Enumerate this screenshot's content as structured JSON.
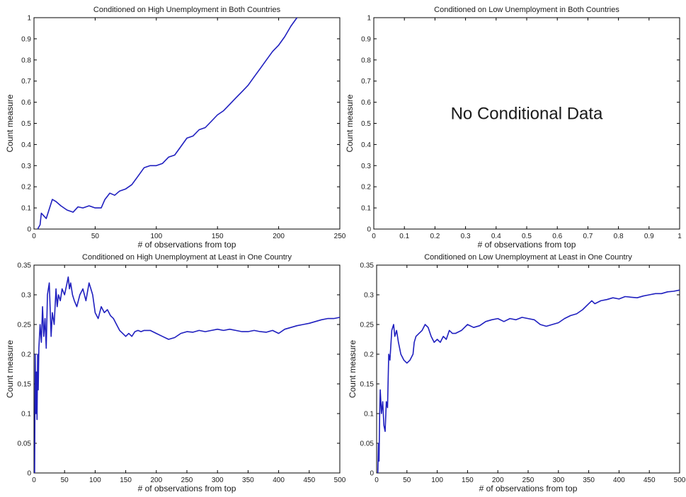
{
  "colors": {
    "line": "#1f1fbf",
    "axis": "#000000",
    "background": "#ffffff"
  },
  "chart_data": [
    {
      "type": "line",
      "title": "Conditioned on High Unemployment in Both Countries",
      "xlabel": "# of observations from top",
      "ylabel": "Count measure",
      "xlim": [
        0,
        250
      ],
      "ylim": [
        0,
        1
      ],
      "xticks": [
        "0",
        "50",
        "100",
        "150",
        "200",
        "250"
      ],
      "yticks": [
        "0",
        "0.1",
        "0.2",
        "0.3",
        "0.4",
        "0.5",
        "0.6",
        "0.7",
        "0.8",
        "0.9",
        "1"
      ],
      "grid": false,
      "note": "",
      "series": [
        {
          "x": [
            3,
            5,
            6,
            10,
            15,
            18,
            22,
            27,
            32,
            36,
            40,
            45,
            50,
            55,
            58,
            62,
            66,
            70,
            75,
            80,
            85,
            90,
            95,
            100,
            105,
            110,
            115,
            120,
            125,
            130,
            135,
            140,
            145,
            150,
            155,
            160,
            165,
            170,
            175,
            180,
            185,
            190,
            195,
            200,
            205,
            210,
            215
          ],
          "y": [
            0,
            0.02,
            0.075,
            0.05,
            0.14,
            0.13,
            0.11,
            0.09,
            0.08,
            0.105,
            0.1,
            0.11,
            0.1,
            0.1,
            0.14,
            0.17,
            0.16,
            0.18,
            0.19,
            0.21,
            0.25,
            0.29,
            0.3,
            0.3,
            0.31,
            0.34,
            0.35,
            0.39,
            0.43,
            0.44,
            0.47,
            0.48,
            0.51,
            0.54,
            0.56,
            0.59,
            0.62,
            0.65,
            0.68,
            0.72,
            0.76,
            0.8,
            0.84,
            0.87,
            0.91,
            0.96,
            1.0
          ]
        }
      ]
    },
    {
      "type": "line",
      "title": "Conditioned on Low Unemployment in Both Countries",
      "xlabel": "# of observations from top",
      "ylabel": "Count measure",
      "xlim": [
        0,
        1
      ],
      "ylim": [
        0,
        1
      ],
      "xticks": [
        "0",
        "0.1",
        "0.2",
        "0.3",
        "0.4",
        "0.5",
        "0.6",
        "0.7",
        "0.8",
        "0.9",
        "1"
      ],
      "yticks": [
        "0",
        "0.1",
        "0.2",
        "0.3",
        "0.4",
        "0.5",
        "0.6",
        "0.7",
        "0.8",
        "0.9",
        "1"
      ],
      "grid": false,
      "note": "No Conditional Data",
      "series": []
    },
    {
      "type": "line",
      "title": "Conditioned on High Unemployment at Least in One Country",
      "xlabel": "# of observations from top",
      "ylabel": "Count measure",
      "xlim": [
        0,
        500
      ],
      "ylim": [
        0,
        0.35
      ],
      "xticks": [
        "0",
        "50",
        "100",
        "150",
        "200",
        "250",
        "300",
        "350",
        "400",
        "450",
        "500"
      ],
      "yticks": [
        "0",
        "0.05",
        "0.1",
        "0.15",
        "0.2",
        "0.25",
        "0.3",
        "0.35"
      ],
      "grid": false,
      "note": "",
      "series": [
        {
          "x": [
            1,
            2,
            3,
            4,
            5,
            6,
            7,
            8,
            10,
            12,
            14,
            16,
            18,
            20,
            22,
            25,
            28,
            30,
            33,
            36,
            38,
            40,
            43,
            46,
            50,
            54,
            56,
            58,
            60,
            63,
            66,
            70,
            75,
            80,
            85,
            90,
            93,
            96,
            100,
            105,
            110,
            115,
            120,
            125,
            130,
            135,
            140,
            145,
            150,
            155,
            160,
            165,
            170,
            175,
            180,
            190,
            200,
            210,
            220,
            230,
            240,
            250,
            260,
            270,
            280,
            290,
            300,
            310,
            320,
            330,
            340,
            350,
            360,
            370,
            380,
            390,
            400,
            410,
            420,
            430,
            440,
            450,
            460,
            470,
            480,
            490,
            500
          ],
          "y": [
            0,
            0.2,
            0.1,
            0.17,
            0.09,
            0.2,
            0.14,
            0.21,
            0.25,
            0.22,
            0.28,
            0.23,
            0.26,
            0.21,
            0.3,
            0.32,
            0.23,
            0.27,
            0.25,
            0.31,
            0.28,
            0.3,
            0.29,
            0.31,
            0.3,
            0.32,
            0.33,
            0.31,
            0.32,
            0.3,
            0.29,
            0.28,
            0.3,
            0.31,
            0.29,
            0.32,
            0.31,
            0.3,
            0.27,
            0.26,
            0.28,
            0.27,
            0.275,
            0.265,
            0.26,
            0.25,
            0.24,
            0.235,
            0.23,
            0.235,
            0.23,
            0.238,
            0.24,
            0.238,
            0.24,
            0.24,
            0.235,
            0.23,
            0.225,
            0.228,
            0.235,
            0.238,
            0.237,
            0.24,
            0.238,
            0.24,
            0.242,
            0.24,
            0.242,
            0.24,
            0.238,
            0.238,
            0.24,
            0.238,
            0.237,
            0.24,
            0.235,
            0.242,
            0.245,
            0.248,
            0.25,
            0.252,
            0.255,
            0.258,
            0.26,
            0.26,
            0.262
          ]
        }
      ]
    },
    {
      "type": "line",
      "title": "Conditioned on Low Unemployment at Least in One Country",
      "xlabel": "# of observations from top",
      "ylabel": "Count measure",
      "xlim": [
        0,
        500
      ],
      "ylim": [
        0,
        0.35
      ],
      "xticks": [
        "0",
        "50",
        "100",
        "150",
        "200",
        "250",
        "300",
        "350",
        "400",
        "450",
        "500"
      ],
      "yticks": [
        "0",
        "0.05",
        "0.1",
        "0.15",
        "0.2",
        "0.25",
        "0.3",
        "0.35"
      ],
      "grid": false,
      "note": "",
      "series": [
        {
          "x": [
            2,
            3,
            4,
            5,
            6,
            8,
            10,
            12,
            14,
            16,
            18,
            20,
            22,
            25,
            28,
            30,
            33,
            36,
            40,
            45,
            50,
            55,
            60,
            62,
            65,
            70,
            75,
            80,
            85,
            90,
            95,
            100,
            105,
            110,
            115,
            120,
            125,
            130,
            140,
            150,
            160,
            170,
            180,
            190,
            200,
            210,
            220,
            230,
            240,
            250,
            260,
            270,
            280,
            290,
            300,
            310,
            320,
            330,
            340,
            350,
            355,
            360,
            370,
            380,
            390,
            400,
            410,
            420,
            430,
            440,
            450,
            460,
            470,
            480,
            490,
            500
          ],
          "y": [
            0,
            0.05,
            0.02,
            0.1,
            0.14,
            0.1,
            0.12,
            0.08,
            0.07,
            0.12,
            0.11,
            0.2,
            0.19,
            0.24,
            0.25,
            0.23,
            0.24,
            0.22,
            0.2,
            0.19,
            0.185,
            0.19,
            0.2,
            0.22,
            0.23,
            0.235,
            0.24,
            0.25,
            0.245,
            0.23,
            0.22,
            0.225,
            0.22,
            0.23,
            0.225,
            0.24,
            0.235,
            0.235,
            0.24,
            0.25,
            0.245,
            0.248,
            0.255,
            0.258,
            0.26,
            0.255,
            0.26,
            0.258,
            0.262,
            0.26,
            0.258,
            0.25,
            0.247,
            0.25,
            0.253,
            0.26,
            0.265,
            0.268,
            0.275,
            0.285,
            0.29,
            0.285,
            0.29,
            0.292,
            0.295,
            0.293,
            0.297,
            0.296,
            0.295,
            0.298,
            0.3,
            0.302,
            0.302,
            0.305,
            0.306,
            0.308
          ]
        }
      ]
    }
  ]
}
